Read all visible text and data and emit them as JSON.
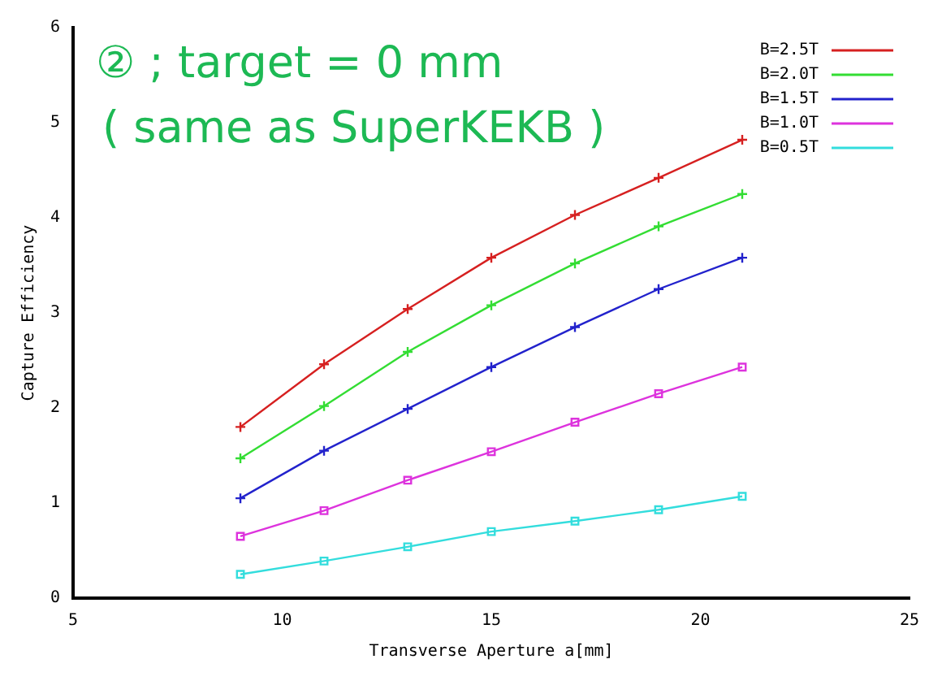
{
  "chart_data": {
    "type": "line",
    "xlabel": "Transverse Aperture a[mm]",
    "ylabel": "Capture Efficiency",
    "annotations": [
      "② ; target = 0 mm",
      "( same as SuperKEKB )"
    ],
    "x": [
      9,
      11,
      13,
      15,
      17,
      19,
      21
    ],
    "series": [
      {
        "name": "B=2.5T",
        "color": "#d62020",
        "marker": "cross",
        "values": [
          1.8,
          2.46,
          3.04,
          3.58,
          4.03,
          4.42,
          4.82
        ]
      },
      {
        "name": "B=2.0T",
        "color": "#33dd33",
        "marker": "cross",
        "values": [
          1.47,
          2.02,
          2.59,
          3.08,
          3.52,
          3.91,
          4.25
        ]
      },
      {
        "name": "B=1.5T",
        "color": "#2222cc",
        "marker": "cross",
        "values": [
          1.05,
          1.55,
          1.99,
          2.43,
          2.85,
          3.25,
          3.58
        ]
      },
      {
        "name": "B=1.0T",
        "color": "#dd33dd",
        "marker": "square",
        "values": [
          0.65,
          0.92,
          1.24,
          1.54,
          1.85,
          2.15,
          2.43
        ]
      },
      {
        "name": "B=0.5T",
        "color": "#33dddd",
        "marker": "square",
        "values": [
          0.25,
          0.39,
          0.54,
          0.7,
          0.81,
          0.93,
          1.07
        ]
      }
    ],
    "xlim": [
      5,
      25
    ],
    "xticks": [
      5,
      10,
      15,
      20,
      25
    ],
    "ylim": [
      0,
      6
    ],
    "yticks": [
      0,
      1,
      2,
      3,
      4,
      5,
      6
    ],
    "legend": "top right"
  }
}
